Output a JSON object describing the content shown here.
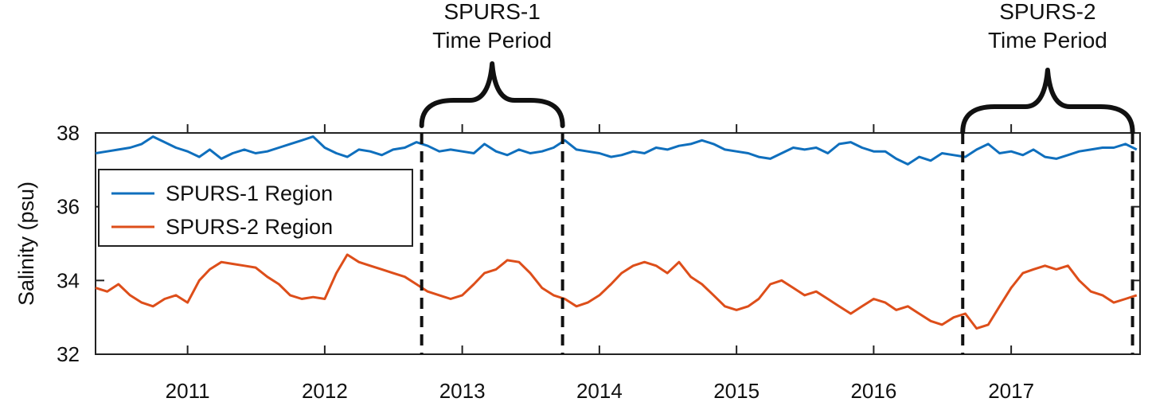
{
  "chart_data": {
    "type": "line",
    "title": "",
    "xlabel": "",
    "ylabel": "Salinity (psu)",
    "xlim": [
      "2010-05-01",
      "2017-12-10"
    ],
    "ylim": [
      32,
      38
    ],
    "xticks": [
      {
        "date": "2011-01-01",
        "label": "2011"
      },
      {
        "date": "2012-01-01",
        "label": "2012"
      },
      {
        "date": "2013-01-01",
        "label": "2013"
      },
      {
        "date": "2014-01-01",
        "label": "2014"
      },
      {
        "date": "2015-01-01",
        "label": "2015"
      },
      {
        "date": "2016-01-01",
        "label": "2016"
      },
      {
        "date": "2017-01-01",
        "label": "2017"
      }
    ],
    "yticks": [
      {
        "value": 32,
        "label": "32"
      },
      {
        "value": 34,
        "label": "34"
      },
      {
        "value": 36,
        "label": "36"
      },
      {
        "value": 38,
        "label": "38"
      }
    ],
    "grid": false,
    "legend_position": "center-left",
    "series": [
      {
        "name": "SPURS-1 Region",
        "color": "#0f6fbd",
        "points": [
          [
            "2010-05-01",
            37.45
          ],
          [
            "2010-06-01",
            37.5
          ],
          [
            "2010-07-01",
            37.55
          ],
          [
            "2010-08-01",
            37.6
          ],
          [
            "2010-09-01",
            37.7
          ],
          [
            "2010-10-01",
            37.9
          ],
          [
            "2010-11-01",
            37.75
          ],
          [
            "2010-12-01",
            37.6
          ],
          [
            "2011-01-01",
            37.5
          ],
          [
            "2011-02-01",
            37.35
          ],
          [
            "2011-03-01",
            37.55
          ],
          [
            "2011-04-01",
            37.3
          ],
          [
            "2011-05-01",
            37.45
          ],
          [
            "2011-06-01",
            37.55
          ],
          [
            "2011-07-01",
            37.45
          ],
          [
            "2011-08-01",
            37.5
          ],
          [
            "2011-09-01",
            37.6
          ],
          [
            "2011-10-01",
            37.7
          ],
          [
            "2011-11-01",
            37.8
          ],
          [
            "2011-12-01",
            37.9
          ],
          [
            "2012-01-01",
            37.6
          ],
          [
            "2012-02-01",
            37.45
          ],
          [
            "2012-03-01",
            37.35
          ],
          [
            "2012-04-01",
            37.55
          ],
          [
            "2012-05-01",
            37.5
          ],
          [
            "2012-06-01",
            37.4
          ],
          [
            "2012-07-01",
            37.55
          ],
          [
            "2012-08-01",
            37.6
          ],
          [
            "2012-09-01",
            37.75
          ],
          [
            "2012-10-01",
            37.65
          ],
          [
            "2012-11-01",
            37.5
          ],
          [
            "2012-12-01",
            37.55
          ],
          [
            "2013-01-01",
            37.5
          ],
          [
            "2013-02-01",
            37.45
          ],
          [
            "2013-03-01",
            37.7
          ],
          [
            "2013-04-01",
            37.5
          ],
          [
            "2013-05-01",
            37.4
          ],
          [
            "2013-06-01",
            37.55
          ],
          [
            "2013-07-01",
            37.45
          ],
          [
            "2013-08-01",
            37.5
          ],
          [
            "2013-09-01",
            37.6
          ],
          [
            "2013-10-01",
            37.8
          ],
          [
            "2013-11-01",
            37.55
          ],
          [
            "2013-12-01",
            37.5
          ],
          [
            "2014-01-01",
            37.45
          ],
          [
            "2014-02-01",
            37.35
          ],
          [
            "2014-03-01",
            37.4
          ],
          [
            "2014-04-01",
            37.5
          ],
          [
            "2014-05-01",
            37.45
          ],
          [
            "2014-06-01",
            37.6
          ],
          [
            "2014-07-01",
            37.55
          ],
          [
            "2014-08-01",
            37.65
          ],
          [
            "2014-09-01",
            37.7
          ],
          [
            "2014-10-01",
            37.8
          ],
          [
            "2014-11-01",
            37.7
          ],
          [
            "2014-12-01",
            37.55
          ],
          [
            "2015-01-01",
            37.5
          ],
          [
            "2015-02-01",
            37.45
          ],
          [
            "2015-03-01",
            37.35
          ],
          [
            "2015-04-01",
            37.3
          ],
          [
            "2015-05-01",
            37.45
          ],
          [
            "2015-06-01",
            37.6
          ],
          [
            "2015-07-01",
            37.55
          ],
          [
            "2015-08-01",
            37.6
          ],
          [
            "2015-09-01",
            37.45
          ],
          [
            "2015-10-01",
            37.7
          ],
          [
            "2015-11-01",
            37.75
          ],
          [
            "2015-12-01",
            37.6
          ],
          [
            "2016-01-01",
            37.5
          ],
          [
            "2016-02-01",
            37.5
          ],
          [
            "2016-03-01",
            37.3
          ],
          [
            "2016-04-01",
            37.15
          ],
          [
            "2016-05-01",
            37.35
          ],
          [
            "2016-06-01",
            37.25
          ],
          [
            "2016-07-01",
            37.45
          ],
          [
            "2016-08-01",
            37.4
          ],
          [
            "2016-09-01",
            37.35
          ],
          [
            "2016-10-01",
            37.55
          ],
          [
            "2016-11-01",
            37.7
          ],
          [
            "2016-12-01",
            37.45
          ],
          [
            "2017-01-01",
            37.5
          ],
          [
            "2017-02-01",
            37.4
          ],
          [
            "2017-03-01",
            37.55
          ],
          [
            "2017-04-01",
            37.35
          ],
          [
            "2017-05-01",
            37.3
          ],
          [
            "2017-06-01",
            37.4
          ],
          [
            "2017-07-01",
            37.5
          ],
          [
            "2017-08-01",
            37.55
          ],
          [
            "2017-09-01",
            37.6
          ],
          [
            "2017-10-01",
            37.6
          ],
          [
            "2017-11-01",
            37.7
          ],
          [
            "2017-12-01",
            37.55
          ]
        ]
      },
      {
        "name": "SPURS-2 Region",
        "color": "#dd4e1a",
        "points": [
          [
            "2010-05-01",
            33.8
          ],
          [
            "2010-06-01",
            33.7
          ],
          [
            "2010-07-01",
            33.9
          ],
          [
            "2010-08-01",
            33.6
          ],
          [
            "2010-09-01",
            33.4
          ],
          [
            "2010-10-01",
            33.3
          ],
          [
            "2010-11-01",
            33.5
          ],
          [
            "2010-12-01",
            33.6
          ],
          [
            "2011-01-01",
            33.4
          ],
          [
            "2011-02-01",
            34.0
          ],
          [
            "2011-03-01",
            34.3
          ],
          [
            "2011-04-01",
            34.5
          ],
          [
            "2011-05-01",
            34.45
          ],
          [
            "2011-06-01",
            34.4
          ],
          [
            "2011-07-01",
            34.35
          ],
          [
            "2011-08-01",
            34.1
          ],
          [
            "2011-09-01",
            33.9
          ],
          [
            "2011-10-01",
            33.6
          ],
          [
            "2011-11-01",
            33.5
          ],
          [
            "2011-12-01",
            33.55
          ],
          [
            "2012-01-01",
            33.5
          ],
          [
            "2012-02-01",
            34.2
          ],
          [
            "2012-03-01",
            34.7
          ],
          [
            "2012-04-01",
            34.5
          ],
          [
            "2012-05-01",
            34.4
          ],
          [
            "2012-06-01",
            34.3
          ],
          [
            "2012-07-01",
            34.2
          ],
          [
            "2012-08-01",
            34.1
          ],
          [
            "2012-09-01",
            33.9
          ],
          [
            "2012-10-01",
            33.7
          ],
          [
            "2012-11-01",
            33.6
          ],
          [
            "2012-12-01",
            33.5
          ],
          [
            "2013-01-01",
            33.6
          ],
          [
            "2013-02-01",
            33.9
          ],
          [
            "2013-03-01",
            34.2
          ],
          [
            "2013-04-01",
            34.3
          ],
          [
            "2013-05-01",
            34.55
          ],
          [
            "2013-06-01",
            34.5
          ],
          [
            "2013-07-01",
            34.2
          ],
          [
            "2013-08-01",
            33.8
          ],
          [
            "2013-09-01",
            33.6
          ],
          [
            "2013-10-01",
            33.5
          ],
          [
            "2013-11-01",
            33.3
          ],
          [
            "2013-12-01",
            33.4
          ],
          [
            "2014-01-01",
            33.6
          ],
          [
            "2014-02-01",
            33.9
          ],
          [
            "2014-03-01",
            34.2
          ],
          [
            "2014-04-01",
            34.4
          ],
          [
            "2014-05-01",
            34.5
          ],
          [
            "2014-06-01",
            34.4
          ],
          [
            "2014-07-01",
            34.2
          ],
          [
            "2014-08-01",
            34.5
          ],
          [
            "2014-09-01",
            34.1
          ],
          [
            "2014-10-01",
            33.9
          ],
          [
            "2014-11-01",
            33.6
          ],
          [
            "2014-12-01",
            33.3
          ],
          [
            "2015-01-01",
            33.2
          ],
          [
            "2015-02-01",
            33.3
          ],
          [
            "2015-03-01",
            33.5
          ],
          [
            "2015-04-01",
            33.9
          ],
          [
            "2015-05-01",
            34.0
          ],
          [
            "2015-06-01",
            33.8
          ],
          [
            "2015-07-01",
            33.6
          ],
          [
            "2015-08-01",
            33.7
          ],
          [
            "2015-09-01",
            33.5
          ],
          [
            "2015-10-01",
            33.3
          ],
          [
            "2015-11-01",
            33.1
          ],
          [
            "2015-12-01",
            33.3
          ],
          [
            "2016-01-01",
            33.5
          ],
          [
            "2016-02-01",
            33.4
          ],
          [
            "2016-03-01",
            33.2
          ],
          [
            "2016-04-01",
            33.3
          ],
          [
            "2016-05-01",
            33.1
          ],
          [
            "2016-06-01",
            32.9
          ],
          [
            "2016-07-01",
            32.8
          ],
          [
            "2016-08-01",
            33.0
          ],
          [
            "2016-09-01",
            33.1
          ],
          [
            "2016-10-01",
            32.7
          ],
          [
            "2016-11-01",
            32.8
          ],
          [
            "2016-12-01",
            33.3
          ],
          [
            "2017-01-01",
            33.8
          ],
          [
            "2017-02-01",
            34.2
          ],
          [
            "2017-03-01",
            34.3
          ],
          [
            "2017-04-01",
            34.4
          ],
          [
            "2017-05-01",
            34.3
          ],
          [
            "2017-06-01",
            34.4
          ],
          [
            "2017-07-01",
            34.0
          ],
          [
            "2017-08-01",
            33.7
          ],
          [
            "2017-09-01",
            33.6
          ],
          [
            "2017-10-01",
            33.4
          ],
          [
            "2017-11-01",
            33.5
          ],
          [
            "2017-12-01",
            33.6
          ]
        ]
      }
    ],
    "annotations": [
      {
        "line1": "SPURS-1",
        "line2": "Time Period",
        "start": "2012-09-15",
        "end": "2013-09-25"
      },
      {
        "line1": "SPURS-2",
        "line2": "Time Period",
        "start": "2016-08-25",
        "end": "2017-11-20"
      }
    ]
  }
}
